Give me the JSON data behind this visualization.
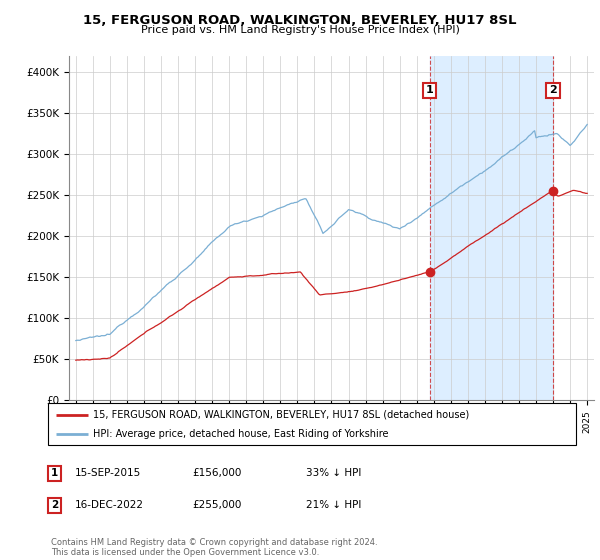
{
  "title": "15, FERGUSON ROAD, WALKINGTON, BEVERLEY, HU17 8SL",
  "subtitle": "Price paid vs. HM Land Registry's House Price Index (HPI)",
  "ylim": [
    0,
    420000
  ],
  "yticks": [
    0,
    50000,
    100000,
    150000,
    200000,
    250000,
    300000,
    350000,
    400000
  ],
  "ytick_labels": [
    "£0",
    "£50K",
    "£100K",
    "£150K",
    "£200K",
    "£250K",
    "£300K",
    "£350K",
    "£400K"
  ],
  "hpi_color": "#7bafd4",
  "price_color": "#cc2222",
  "shade_color": "#ddeeff",
  "t1_year": 2015.75,
  "t2_year": 2023.0,
  "t1_price": 156000,
  "t2_price": 255000,
  "legend_line1": "15, FERGUSON ROAD, WALKINGTON, BEVERLEY, HU17 8SL (detached house)",
  "legend_line2": "HPI: Average price, detached house, East Riding of Yorkshire",
  "footer": "Contains HM Land Registry data © Crown copyright and database right 2024.\nThis data is licensed under the Open Government Licence v3.0.",
  "background_color": "#ffffff",
  "grid_color": "#cccccc"
}
